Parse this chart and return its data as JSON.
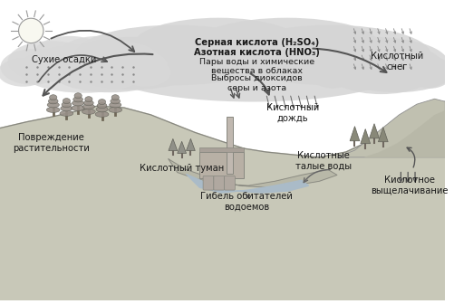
{
  "bg_color": "#ffffff",
  "text_color": "#1a1a1a",
  "cloud_color": "#d5d5d5",
  "cloud_color2": "#c8c8c8",
  "ground_color": "#c8c8b8",
  "ground_line_color": "#888880",
  "lake_color": "#b0c0c8",
  "arrow_color": "#555555",
  "rain_color": "#666666",
  "labels": {
    "sulfuric_acid": "Серная кислота (H₂SO₄)",
    "nitric_acid": "Азотная кислота (HNO₃)",
    "water_vapors": "Пары воды и химические\nвещества в облаках",
    "emissions": "Выбросы диоксидов\nсеры и азота",
    "dry_deposits": "Сухие осадки",
    "acid_rain": "Кислотный\nдождь",
    "acid_snow": "Кислотный\nснег",
    "acid_fog": "Кислотный туман",
    "acid_melt": "Кислотные\nталые воды",
    "acid_leach": "Кислотное\nвыщелачивание",
    "damage_veg": "Повреждение\nрастительности",
    "death_water": "Гибель обитателей\nводоемов"
  }
}
